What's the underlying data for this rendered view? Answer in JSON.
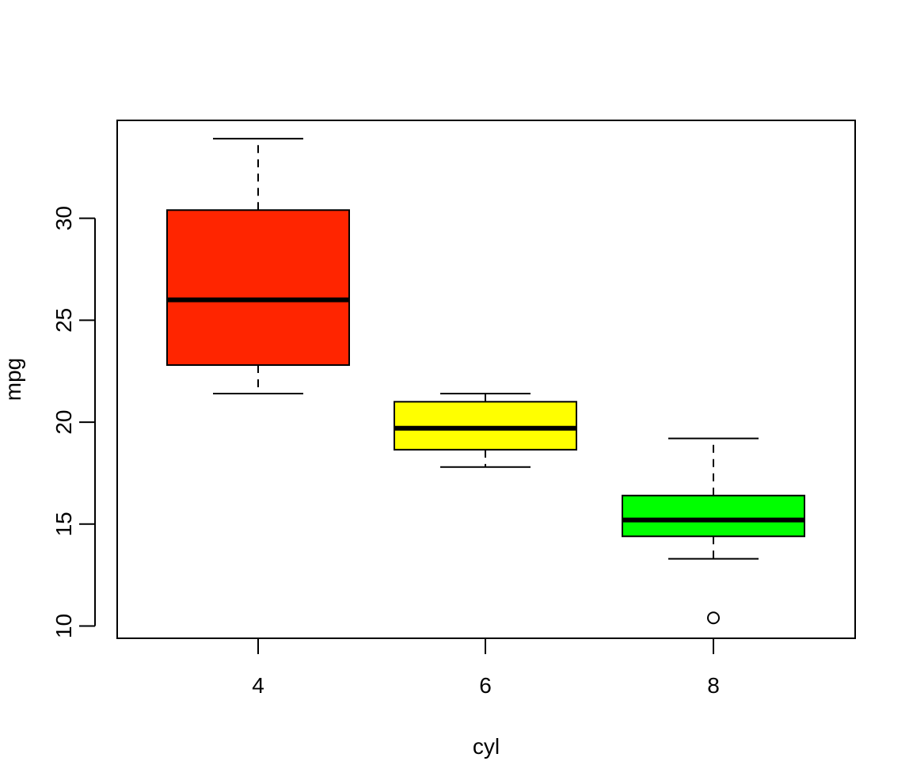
{
  "chart_data": {
    "type": "boxplot",
    "title": "",
    "xlabel": "cyl",
    "ylabel": "mpg",
    "ylim": [
      9.4,
      34.8
    ],
    "categories": [
      "4",
      "6",
      "8"
    ],
    "yticks": [
      "10",
      "15",
      "20",
      "25",
      "30"
    ],
    "boxes": [
      {
        "category": "4",
        "whisker_low": 21.4,
        "q1": 22.8,
        "median": 26.0,
        "q3": 30.4,
        "whisker_high": 33.9,
        "outliers": [],
        "color": "#ff2500"
      },
      {
        "category": "6",
        "whisker_low": 17.8,
        "q1": 18.65,
        "median": 19.7,
        "q3": 21.0,
        "whisker_high": 21.4,
        "outliers": [],
        "color": "#ffff00"
      },
      {
        "category": "8",
        "whisker_low": 13.3,
        "q1": 14.4,
        "median": 15.2,
        "q3": 16.4,
        "whisker_high": 19.2,
        "outliers": [
          10.4
        ],
        "color": "#00ff00"
      }
    ],
    "grid": false,
    "legend": "none"
  }
}
